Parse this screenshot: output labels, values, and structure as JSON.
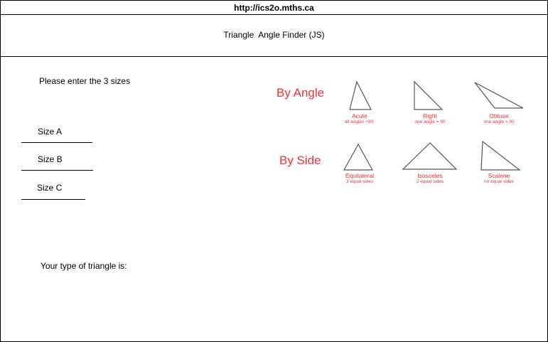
{
  "url": "http://ics2o.mths.ca",
  "title": "Triangle  Angle Finder (JS)",
  "prompt": "Please enter the 3 sizes",
  "inputs": [
    {
      "label": "Size A",
      "value": ""
    },
    {
      "label": "Size B",
      "value": ""
    },
    {
      "label": "Size C",
      "value": ""
    }
  ],
  "result_label": "Your type of triangle is:",
  "by_angle": {
    "heading": "By Angle",
    "types": [
      {
        "name": "Acute",
        "desc": "all angles <90"
      },
      {
        "name": "Right",
        "desc": "one angle = 90"
      },
      {
        "name": "Obtuse",
        "desc": "one angle > 90"
      }
    ]
  },
  "by_side": {
    "heading": "By Side",
    "types": [
      {
        "name": "Equilateral",
        "desc": "3 equal sides"
      },
      {
        "name": "Isosceles",
        "desc": "2 equal sides"
      },
      {
        "name": "Scalene",
        "desc": "no equal sides"
      }
    ]
  },
  "colors": {
    "accent": "#f03232",
    "line": "#000000"
  }
}
